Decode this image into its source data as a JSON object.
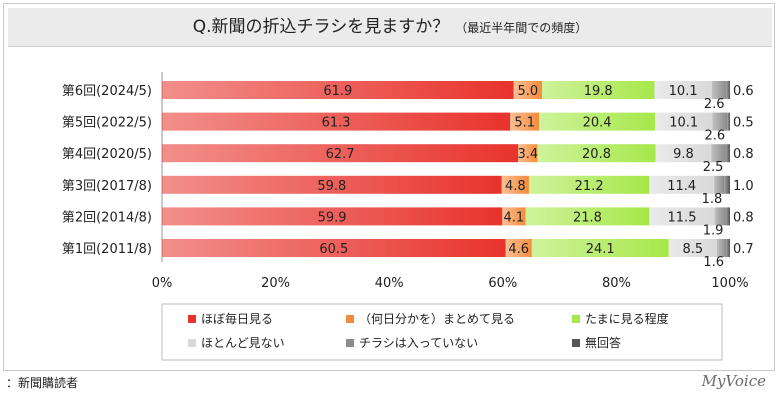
{
  "title": "Q.新聞の折込チラシを見ますか？",
  "subtitle": "（最近半年間での頻度）",
  "footer_note": "：新聞購読者",
  "brand": "MyVoice",
  "chart_data": {
    "type": "bar",
    "orientation": "horizontal",
    "stacked": "percent",
    "categories": [
      "第6回(2024/5)",
      "第5回(2022/5)",
      "第4回(2020/5)",
      "第3回(2017/8)",
      "第2回(2014/8)",
      "第1回(2011/8)"
    ],
    "series": [
      {
        "name": "ほぼ毎日見る",
        "color": "#e8332c",
        "values": [
          61.9,
          61.3,
          62.7,
          59.8,
          59.9,
          60.5
        ]
      },
      {
        "name": "（何日分かを）まとめて見る",
        "color": "#f58b3c",
        "values": [
          5.0,
          5.1,
          3.4,
          4.8,
          4.1,
          4.6
        ]
      },
      {
        "name": "たまに見る程度",
        "color": "#a6e84a",
        "values": [
          19.8,
          20.4,
          20.8,
          21.2,
          21.8,
          24.1
        ]
      },
      {
        "name": "ほとんど見ない",
        "color": "#d9d9d9",
        "values": [
          10.1,
          10.1,
          9.8,
          11.4,
          11.5,
          8.5
        ]
      },
      {
        "name": "チラシは入っていない",
        "color": "#8c8c8c",
        "values": [
          2.6,
          2.6,
          2.5,
          1.8,
          1.9,
          1.6
        ]
      },
      {
        "name": "無回答",
        "color": "#555555",
        "values": [
          0.6,
          0.5,
          0.8,
          1.0,
          0.8,
          0.7
        ]
      }
    ],
    "value_labels": [
      [
        "61.9",
        "5.0",
        "19.8",
        "10.1",
        "2.6",
        "0.6"
      ],
      [
        "61.3",
        "5.1",
        "20.4",
        "10.1",
        "2.6",
        "0.5"
      ],
      [
        "62.7",
        "3.4",
        "20.8",
        "9.8",
        "2.5",
        "0.8"
      ],
      [
        "59.8",
        "4.8",
        "21.2",
        "11.4",
        "1.8",
        "1.0"
      ],
      [
        "59.9",
        "4.1",
        "21.8",
        "11.5",
        "1.9",
        "0.8"
      ],
      [
        "60.5",
        "4.6",
        "24.1",
        "8.5",
        "1.6",
        "0.7"
      ]
    ],
    "x_ticks": [
      0,
      20,
      40,
      60,
      80,
      100
    ],
    "x_tick_labels": [
      "0%",
      "20%",
      "40%",
      "60%",
      "80%",
      "100%"
    ],
    "xlim": [
      0,
      100
    ],
    "grid": false,
    "legend_position": "bottom"
  }
}
